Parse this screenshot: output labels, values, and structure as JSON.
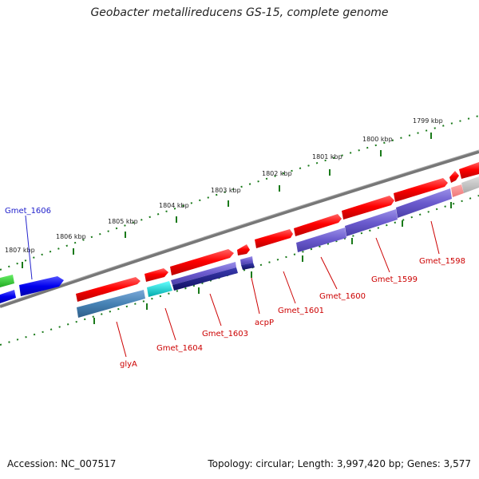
{
  "title": "Geobacter metallireducens GS-15, complete genome",
  "footer": {
    "accession": "Accession: NC_007517",
    "topology": "Topology: circular; Length: 3,997,420 bp; Genes: 3,577"
  },
  "ticks": [
    "1807 kbp",
    "1806 kbp",
    "1805 kbp",
    "1804 kbp",
    "1803 kbp",
    "1802 kbp",
    "1801 kbp",
    "1800 kbp",
    "1799 kbp"
  ],
  "genes": [
    {
      "name": "Gmet_1606",
      "color": "#2222cc"
    },
    {
      "name": "glyA",
      "color": "#cc0000"
    },
    {
      "name": "Gmet_1604",
      "color": "#cc0000"
    },
    {
      "name": "Gmet_1603",
      "color": "#cc0000"
    },
    {
      "name": "acpP",
      "color": "#cc0000"
    },
    {
      "name": "Gmet_1601",
      "color": "#cc0000"
    },
    {
      "name": "Gmet_1600",
      "color": "#cc0000"
    },
    {
      "name": "Gmet_1599",
      "color": "#cc0000"
    },
    {
      "name": "Gmet_1598",
      "color": "#cc0000"
    }
  ],
  "colors": {
    "backbone": "#777777",
    "tick": "#1a7a1a",
    "forward_gene": "#ee0000",
    "reverse_cds": "#6a5acd",
    "reverse_cds_dark": "#1a1a80",
    "blue_gene": "#1111ee",
    "green_gene": "#33cc33",
    "teal_gene": "#4682b4",
    "cyan_gene": "#00cccc"
  }
}
